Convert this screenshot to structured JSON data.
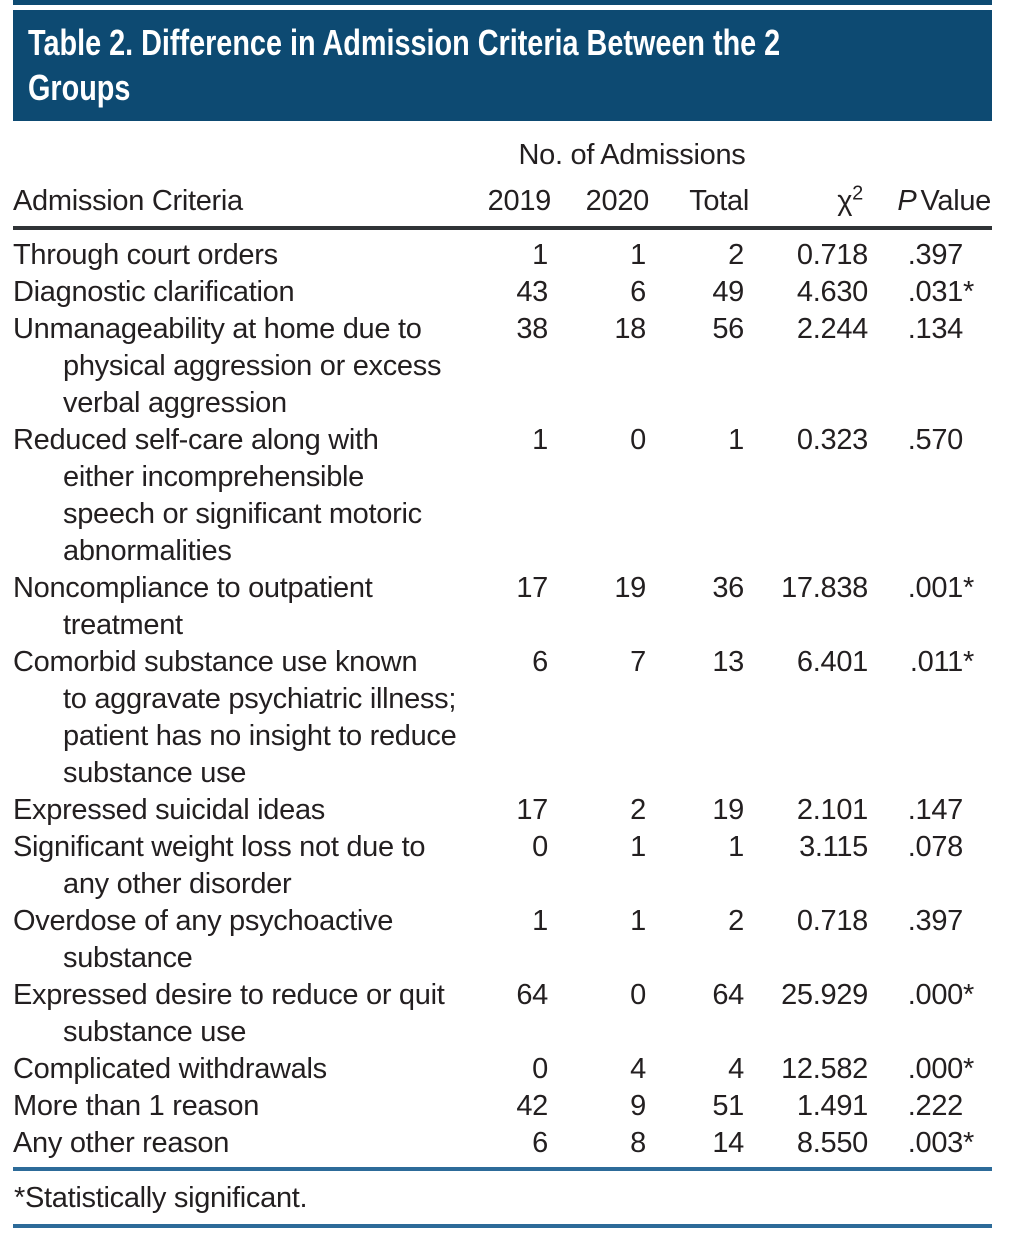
{
  "title": {
    "lines": [
      "Table 2. Difference in Admission Criteria Between the 2",
      "Groups"
    ]
  },
  "table": {
    "group_header": "No. of Admissions",
    "columns": {
      "criteria": "Admission Criteria",
      "y2019": "2019",
      "y2020": "2020",
      "total": "Total",
      "chi": {
        "base": "χ",
        "sup": "2"
      },
      "p": {
        "italic": "P",
        "rest": "Value"
      }
    },
    "rows": [
      {
        "criteria_lines": [
          "Through court orders"
        ],
        "y2019": "1",
        "y2020": "1",
        "total": "2",
        "chi": "0.718",
        "p": ".397",
        "sig": false
      },
      {
        "criteria_lines": [
          "Diagnostic clarification"
        ],
        "y2019": "43",
        "y2020": "6",
        "total": "49",
        "chi": "4.630",
        "p": ".031",
        "sig": true
      },
      {
        "criteria_lines": [
          "Unmanageability at home due to",
          "physical aggression or excess",
          "verbal aggression"
        ],
        "y2019": "38",
        "y2020": "18",
        "total": "56",
        "chi": "2.244",
        "p": ".134",
        "sig": false
      },
      {
        "criteria_lines": [
          "Reduced self-care along with",
          "either incomprehensible",
          "speech or significant motoric",
          "abnormalities"
        ],
        "y2019": "1",
        "y2020": "0",
        "total": "1",
        "chi": "0.323",
        "p": ".570",
        "sig": false
      },
      {
        "criteria_lines": [
          "Noncompliance to outpatient",
          "treatment"
        ],
        "y2019": "17",
        "y2020": "19",
        "total": "36",
        "chi": "17.838",
        "p": ".001",
        "sig": true
      },
      {
        "criteria_lines": [
          "Comorbid substance use known",
          "to aggravate psychiatric illness;",
          "patient has no insight to reduce",
          "substance use"
        ],
        "y2019": "6",
        "y2020": "7",
        "total": "13",
        "chi": "6.401",
        "p": ".011",
        "sig": true
      },
      {
        "criteria_lines": [
          "Expressed suicidal ideas"
        ],
        "y2019": "17",
        "y2020": "2",
        "total": "19",
        "chi": "2.101",
        "p": ".147",
        "sig": false
      },
      {
        "criteria_lines": [
          "Significant weight loss not due to",
          "any other disorder"
        ],
        "y2019": "0",
        "y2020": "1",
        "total": "1",
        "chi": "3.115",
        "p": ".078",
        "sig": false
      },
      {
        "criteria_lines": [
          "Overdose of any psychoactive",
          "substance"
        ],
        "y2019": "1",
        "y2020": "1",
        "total": "2",
        "chi": "0.718",
        "p": ".397",
        "sig": false
      },
      {
        "criteria_lines": [
          "Expressed desire to reduce or quit",
          "substance use"
        ],
        "y2019": "64",
        "y2020": "0",
        "total": "64",
        "chi": "25.929",
        "p": ".000",
        "sig": true
      },
      {
        "criteria_lines": [
          "Complicated withdrawals"
        ],
        "y2019": "0",
        "y2020": "4",
        "total": "4",
        "chi": "12.582",
        "p": ".000",
        "sig": true
      },
      {
        "criteria_lines": [
          "More than 1 reason"
        ],
        "y2019": "42",
        "y2020": "9",
        "total": "51",
        "chi": "1.491",
        "p": ".222",
        "sig": false
      },
      {
        "criteria_lines": [
          "Any other reason"
        ],
        "y2019": "6",
        "y2020": "8",
        "total": "14",
        "chi": "8.550",
        "p": ".003",
        "sig": true
      }
    ],
    "asterisk": "*"
  },
  "footnote": "*Statistically significant.",
  "colors": {
    "navy": "#0d4a72",
    "rule_blue": "#2d6b99",
    "rule_dark": "#303336",
    "text": "#231f20"
  }
}
